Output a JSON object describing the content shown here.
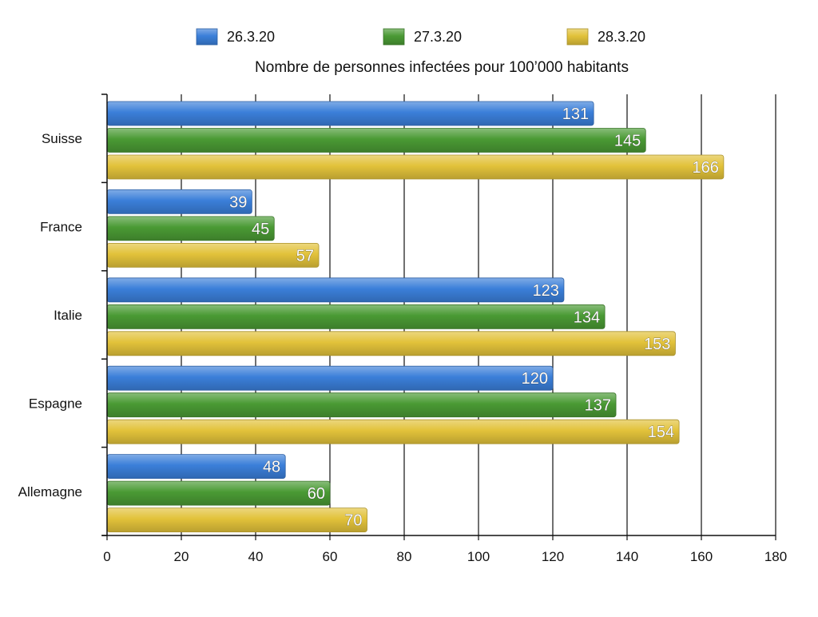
{
  "chart_data": {
    "type": "bar",
    "orientation": "horizontal",
    "title": "Nombre de personnes infectées pour 100’000 habitants",
    "categories": [
      "Suisse",
      "France",
      "Italie",
      "Espagne",
      "Allemagne"
    ],
    "series": [
      {
        "name": "26.3.20",
        "color": "#3b7fd9",
        "values": [
          131,
          39,
          123,
          120,
          48
        ]
      },
      {
        "name": "27.3.20",
        "color": "#4a9a34",
        "values": [
          145,
          45,
          134,
          137,
          60
        ]
      },
      {
        "name": "28.3.20",
        "color": "#e2c23a",
        "values": [
          166,
          57,
          153,
          154,
          70
        ]
      }
    ],
    "xlim": [
      0,
      180
    ],
    "xticks": [
      0,
      20,
      40,
      60,
      80,
      100,
      120,
      140,
      160,
      180
    ],
    "grid": true,
    "legend": "top-center",
    "data_labels": true
  }
}
